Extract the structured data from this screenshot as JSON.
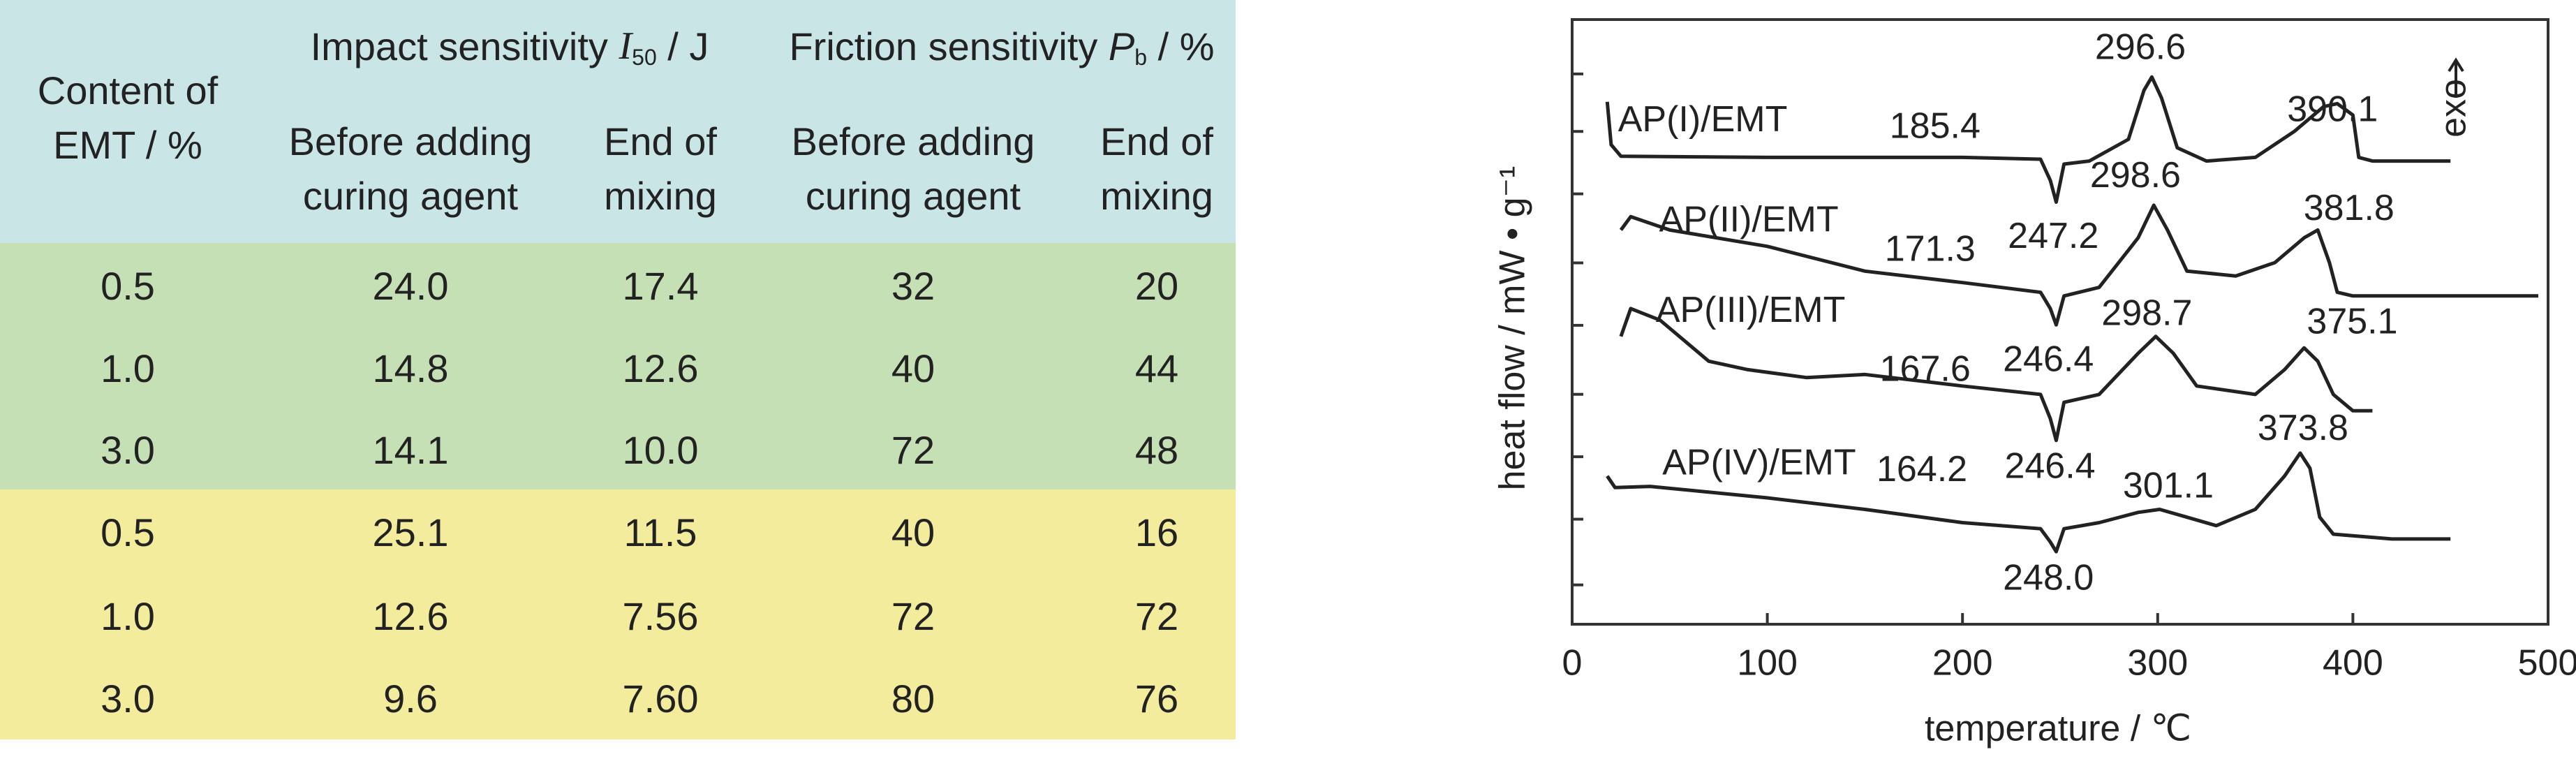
{
  "table": {
    "header": {
      "content": [
        "Content of",
        "EMT / %"
      ],
      "impact": {
        "text": "Impact sensitivity ",
        "symbol": "I",
        "subscript": "50",
        "unit": " / J"
      },
      "friction": {
        "text": "Friction sensitivity ",
        "symbol": "P",
        "subscript": "b",
        "unit": " / %"
      },
      "subheaders": [
        [
          "Before adding",
          "curing agent"
        ],
        [
          "End of",
          "mixing"
        ],
        [
          "Before adding",
          "curing agent"
        ],
        [
          "End of",
          "mixing"
        ]
      ]
    },
    "rows": [
      [
        "0.5",
        "24.0",
        "17.4",
        "32",
        "20"
      ],
      [
        "1.0",
        "14.8",
        "12.6",
        "40",
        "44"
      ],
      [
        "3.0",
        "14.1",
        "10.0",
        "72",
        "48"
      ],
      [
        "0.5",
        "25.1",
        "11.5",
        "40",
        "16"
      ],
      [
        "1.0",
        "12.6",
        "7.56",
        "72",
        "72"
      ],
      [
        "3.0",
        "9.6",
        "7.60",
        "80",
        "76"
      ]
    ]
  },
  "chart_data": {
    "type": "line",
    "xlabel": "temperature / ℃",
    "ylabel": "heat flow / mW • g⁻¹",
    "xlim": [
      0,
      500
    ],
    "xticks": [
      0,
      100,
      200,
      300,
      400,
      500
    ],
    "ylim": [
      0,
      100
    ],
    "color": "#222222",
    "series": [
      {
        "name": "AP(I)/EMT",
        "x": [
          18,
          20,
          25,
          100,
          200,
          240,
          245,
          248,
          252,
          265,
          285,
          293,
          297,
          302,
          310,
          325,
          350,
          370,
          385,
          392,
          400,
          403,
          410,
          450
        ],
        "values": [
          86.4,
          79.3,
          77.4,
          77.2,
          77.2,
          76.9,
          73.4,
          69.8,
          76.1,
          76.6,
          80.2,
          88.3,
          90.5,
          87.0,
          78.8,
          76.6,
          77.2,
          81.5,
          85.6,
          86.1,
          84.2,
          77.2,
          76.6,
          76.6
        ]
      },
      {
        "name": "AP(II)/EMT",
        "x": [
          25,
          30,
          50,
          100,
          150,
          200,
          240,
          245,
          248,
          252,
          270,
          290,
          298,
          305,
          315,
          340,
          360,
          375,
          382,
          388,
          392,
          400,
          450,
          495
        ],
        "values": [
          65.2,
          67.4,
          65.2,
          62.5,
          58.4,
          56.5,
          54.9,
          52.2,
          49.5,
          54.3,
          55.7,
          63.9,
          69.3,
          65.2,
          58.4,
          57.6,
          59.8,
          63.9,
          65.2,
          59.8,
          54.9,
          54.3,
          54.3,
          54.3
        ]
      },
      {
        "name": "AP(III)/EMT",
        "x": [
          25,
          30,
          45,
          70,
          90,
          120,
          150,
          200,
          240,
          245,
          248,
          252,
          270,
          290,
          299,
          308,
          320,
          350,
          365,
          375,
          382,
          390,
          400,
          410
        ],
        "values": [
          47.6,
          52.2,
          50.3,
          43.5,
          42.1,
          40.8,
          41.3,
          39.4,
          38.0,
          34.0,
          30.4,
          36.7,
          38.0,
          44.8,
          47.6,
          44.8,
          39.4,
          38.0,
          42.1,
          45.7,
          43.5,
          38.0,
          35.3,
          35.3
        ]
      },
      {
        "name": "AP(IV)/EMT",
        "x": [
          18,
          22,
          40,
          100,
          150,
          200,
          240,
          245,
          248,
          252,
          270,
          290,
          301,
          315,
          330,
          350,
          365,
          373,
          378,
          383,
          390,
          420,
          450
        ],
        "values": [
          24.5,
          22.6,
          22.8,
          20.9,
          19.0,
          16.8,
          15.8,
          13.6,
          12.0,
          15.8,
          16.8,
          18.5,
          19.0,
          17.7,
          16.3,
          19.0,
          24.5,
          28.3,
          25.8,
          17.7,
          14.9,
          14.1,
          14.1
        ]
      }
    ],
    "annotations": [
      {
        "value": 185.4,
        "label": "185.4"
      },
      {
        "value": 296.6,
        "label": "296.6"
      },
      {
        "value": 390.1,
        "label": "390.1"
      },
      {
        "value": 298.6,
        "label": "298.6"
      },
      {
        "value": 171.3,
        "label": "171.3"
      },
      {
        "value": 247.2,
        "label": "247.2"
      },
      {
        "value": 381.8,
        "label": "381.8"
      },
      {
        "value": 298.7,
        "label": "298.7"
      },
      {
        "value": 375.1,
        "label": "375.1"
      },
      {
        "value": 167.6,
        "label": "167.6"
      },
      {
        "value": 246.4,
        "label": "246.4"
      },
      {
        "value": 373.8,
        "label": "373.8"
      },
      {
        "value": 164.2,
        "label": "164.2"
      },
      {
        "value": 246.4,
        "label": "246.4"
      },
      {
        "value": 301.1,
        "label": "301.1"
      },
      {
        "value": 248.0,
        "label": "248.0"
      }
    ],
    "exo": "exo"
  }
}
